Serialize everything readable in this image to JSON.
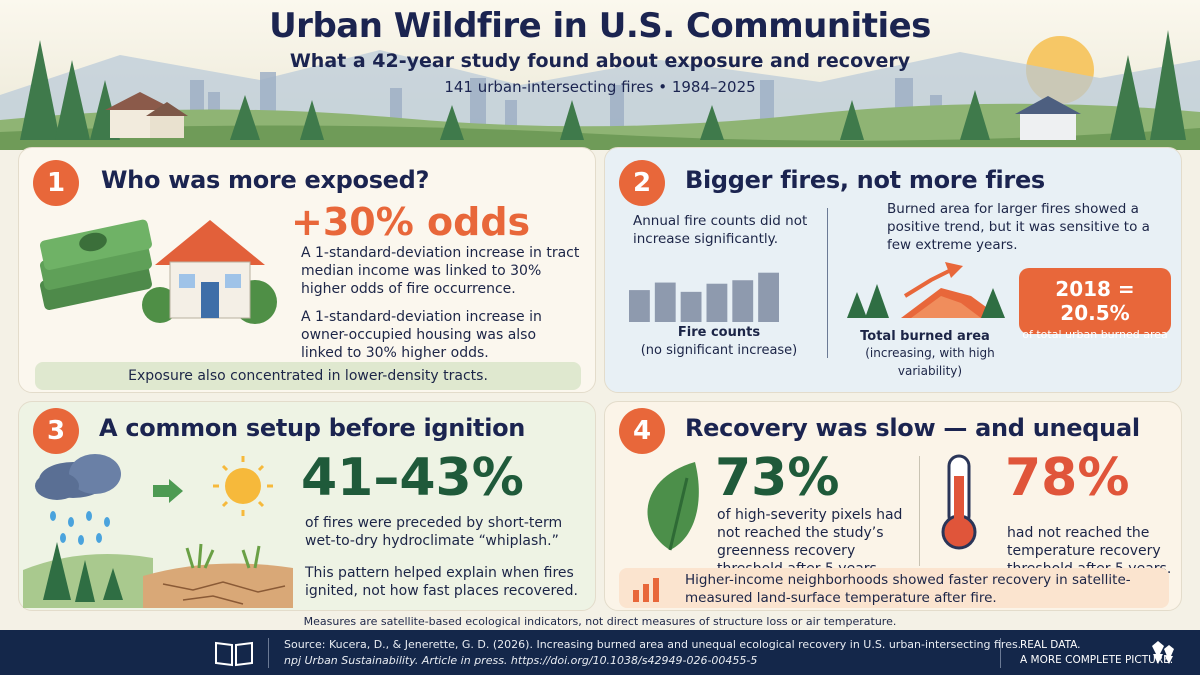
{
  "header": {
    "title": "Urban Wildfire in U.S. Communities",
    "subtitle": "What a 42-year study found about exposure and recovery",
    "meta": "141 urban-intersecting fires  •  1984–2025"
  },
  "panel1": {
    "number": "1",
    "title": "Who was more exposed?",
    "stat": "+30% odds",
    "text1": "A 1-standard-deviation increase in tract median income was linked to 30% higher odds of fire occurrence.",
    "text2": "A 1-standard-deviation increase in owner-occupied housing was also linked to 30% higher odds.",
    "strip": "Exposure also concentrated in lower-density tracts."
  },
  "panel2": {
    "number": "2",
    "title": "Bigger fires, not more fires",
    "left_text": "Annual fire counts did not increase significantly.",
    "left_caption_bold": "Fire counts",
    "left_caption": "(no significant increase)",
    "right_text": "Burned area for larger fires showed a positive trend, but it was sensitive to a few extreme years.",
    "right_caption_bold": "Total burned area",
    "right_caption": "(increasing, with high variability)",
    "badge_stat": "2018 = 20.5%",
    "badge_caption": "of total urban burned area",
    "fire_count_bars": [
      0.55,
      0.68,
      0.52,
      0.66,
      0.72,
      0.85
    ]
  },
  "panel3": {
    "number": "3",
    "title": "A common setup before ignition",
    "stat": "41–43%",
    "text1": "of fires were preceded by short-term wet-to-dry hydroclimate “whiplash.”",
    "text2": "This pattern helped explain when fires ignited, not how fast places recovered."
  },
  "panel4": {
    "number": "4",
    "title": "Recovery was slow — and unequal",
    "stat1": "73%",
    "text1": "of high-severity pixels had not reached the study’s greenness recovery threshold after 5 years.",
    "stat2": "78%",
    "text2": "had not reached the temperature recovery threshold after 5 years.",
    "strip": "Higher-income neighborhoods showed faster recovery in satellite-measured land-surface temperature after fire."
  },
  "note": "Measures are satellite-based ecological indicators, not direct measures of structure loss or air temperature.",
  "footer": {
    "source1": "Source: Kucera, D., & Jenerette, G. D. (2026). Increasing burned area and unequal ecological recovery in U.S. urban-intersecting fires.",
    "source2": "npj Urban Sustainability. Article in press. https://doi.org/10.1038/s42949-026-00455-5",
    "tag1": "REAL DATA.",
    "tag2": "A MORE COMPLETE PICTURE."
  },
  "colors": {
    "accent": "#e8673a",
    "navy": "#1b2450",
    "green": "#1f5a3a",
    "footer": "#14274a"
  }
}
